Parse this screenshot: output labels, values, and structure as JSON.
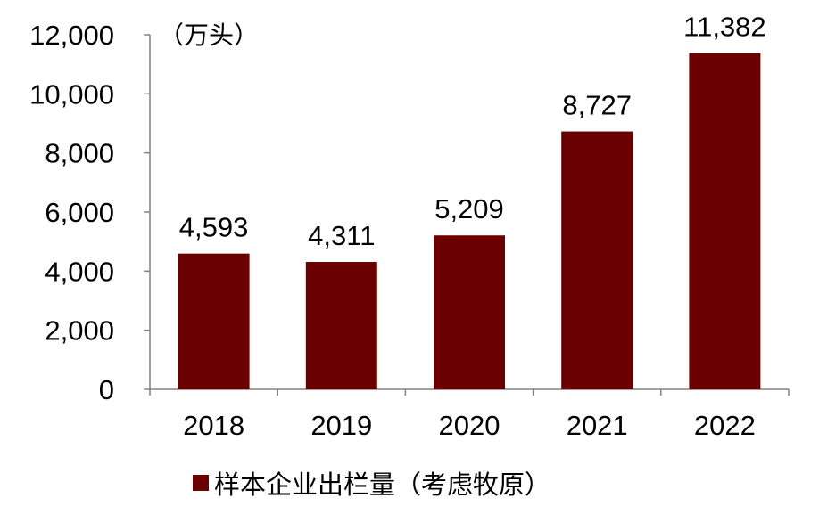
{
  "chart_data": {
    "type": "bar",
    "unit_label": "（万头）",
    "categories": [
      "2018",
      "2019",
      "2020",
      "2021",
      "2022"
    ],
    "series": [
      {
        "name": "样本企业出栏量（考虑牧原）",
        "values": [
          4593,
          4311,
          5209,
          8727,
          11382
        ],
        "value_labels": [
          "4,593",
          "4,311",
          "5,209",
          "8,727",
          "11,382"
        ],
        "color": "#6b0000"
      }
    ],
    "ylim": [
      0,
      12000
    ],
    "y_ticks": [
      0,
      2000,
      4000,
      6000,
      8000,
      10000,
      12000
    ],
    "y_tick_labels": [
      "0",
      "2,000",
      "4,000",
      "6,000",
      "8,000",
      "10,000",
      "12,000"
    ],
    "grid": false,
    "legend_position": "bottom"
  }
}
